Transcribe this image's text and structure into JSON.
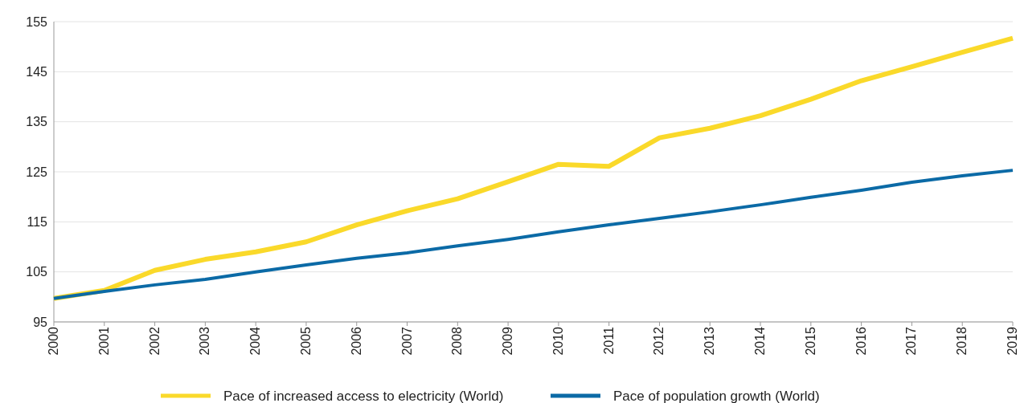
{
  "chart_data": {
    "type": "line",
    "categories": [
      "2000",
      "2001",
      "2002",
      "2003",
      "2004",
      "2005",
      "2006",
      "2007",
      "2008",
      "2009",
      "2010",
      "2011",
      "2012",
      "2013",
      "2014",
      "2015",
      "2016",
      "2017",
      "2018",
      "2019"
    ],
    "series": [
      {
        "name": "Pace of increased access to electricity (World)",
        "color": "#fad92a",
        "values": [
          99.7,
          101.3,
          105.3,
          107.5,
          109,
          111,
          114.4,
          117.2,
          119.6,
          123,
          126.5,
          126.1,
          131.8,
          133.7,
          136.2,
          139.5,
          143.2,
          146,
          148.9,
          151.7
        ]
      },
      {
        "name": "Pace of population growth (World)",
        "color": "#0b6aa6",
        "values": [
          99.7,
          101.1,
          102.4,
          103.5,
          105,
          106.4,
          107.7,
          108.8,
          110.2,
          111.5,
          113,
          114.4,
          115.7,
          117,
          118.4,
          119.9,
          121.3,
          122.9,
          124.2,
          125.3
        ]
      }
    ],
    "ylim": [
      95,
      155
    ],
    "yticks": [
      95,
      105,
      115,
      125,
      135,
      145,
      155
    ],
    "grid": "y",
    "legend": "bottom",
    "marker": "none",
    "line_style": "solid"
  }
}
